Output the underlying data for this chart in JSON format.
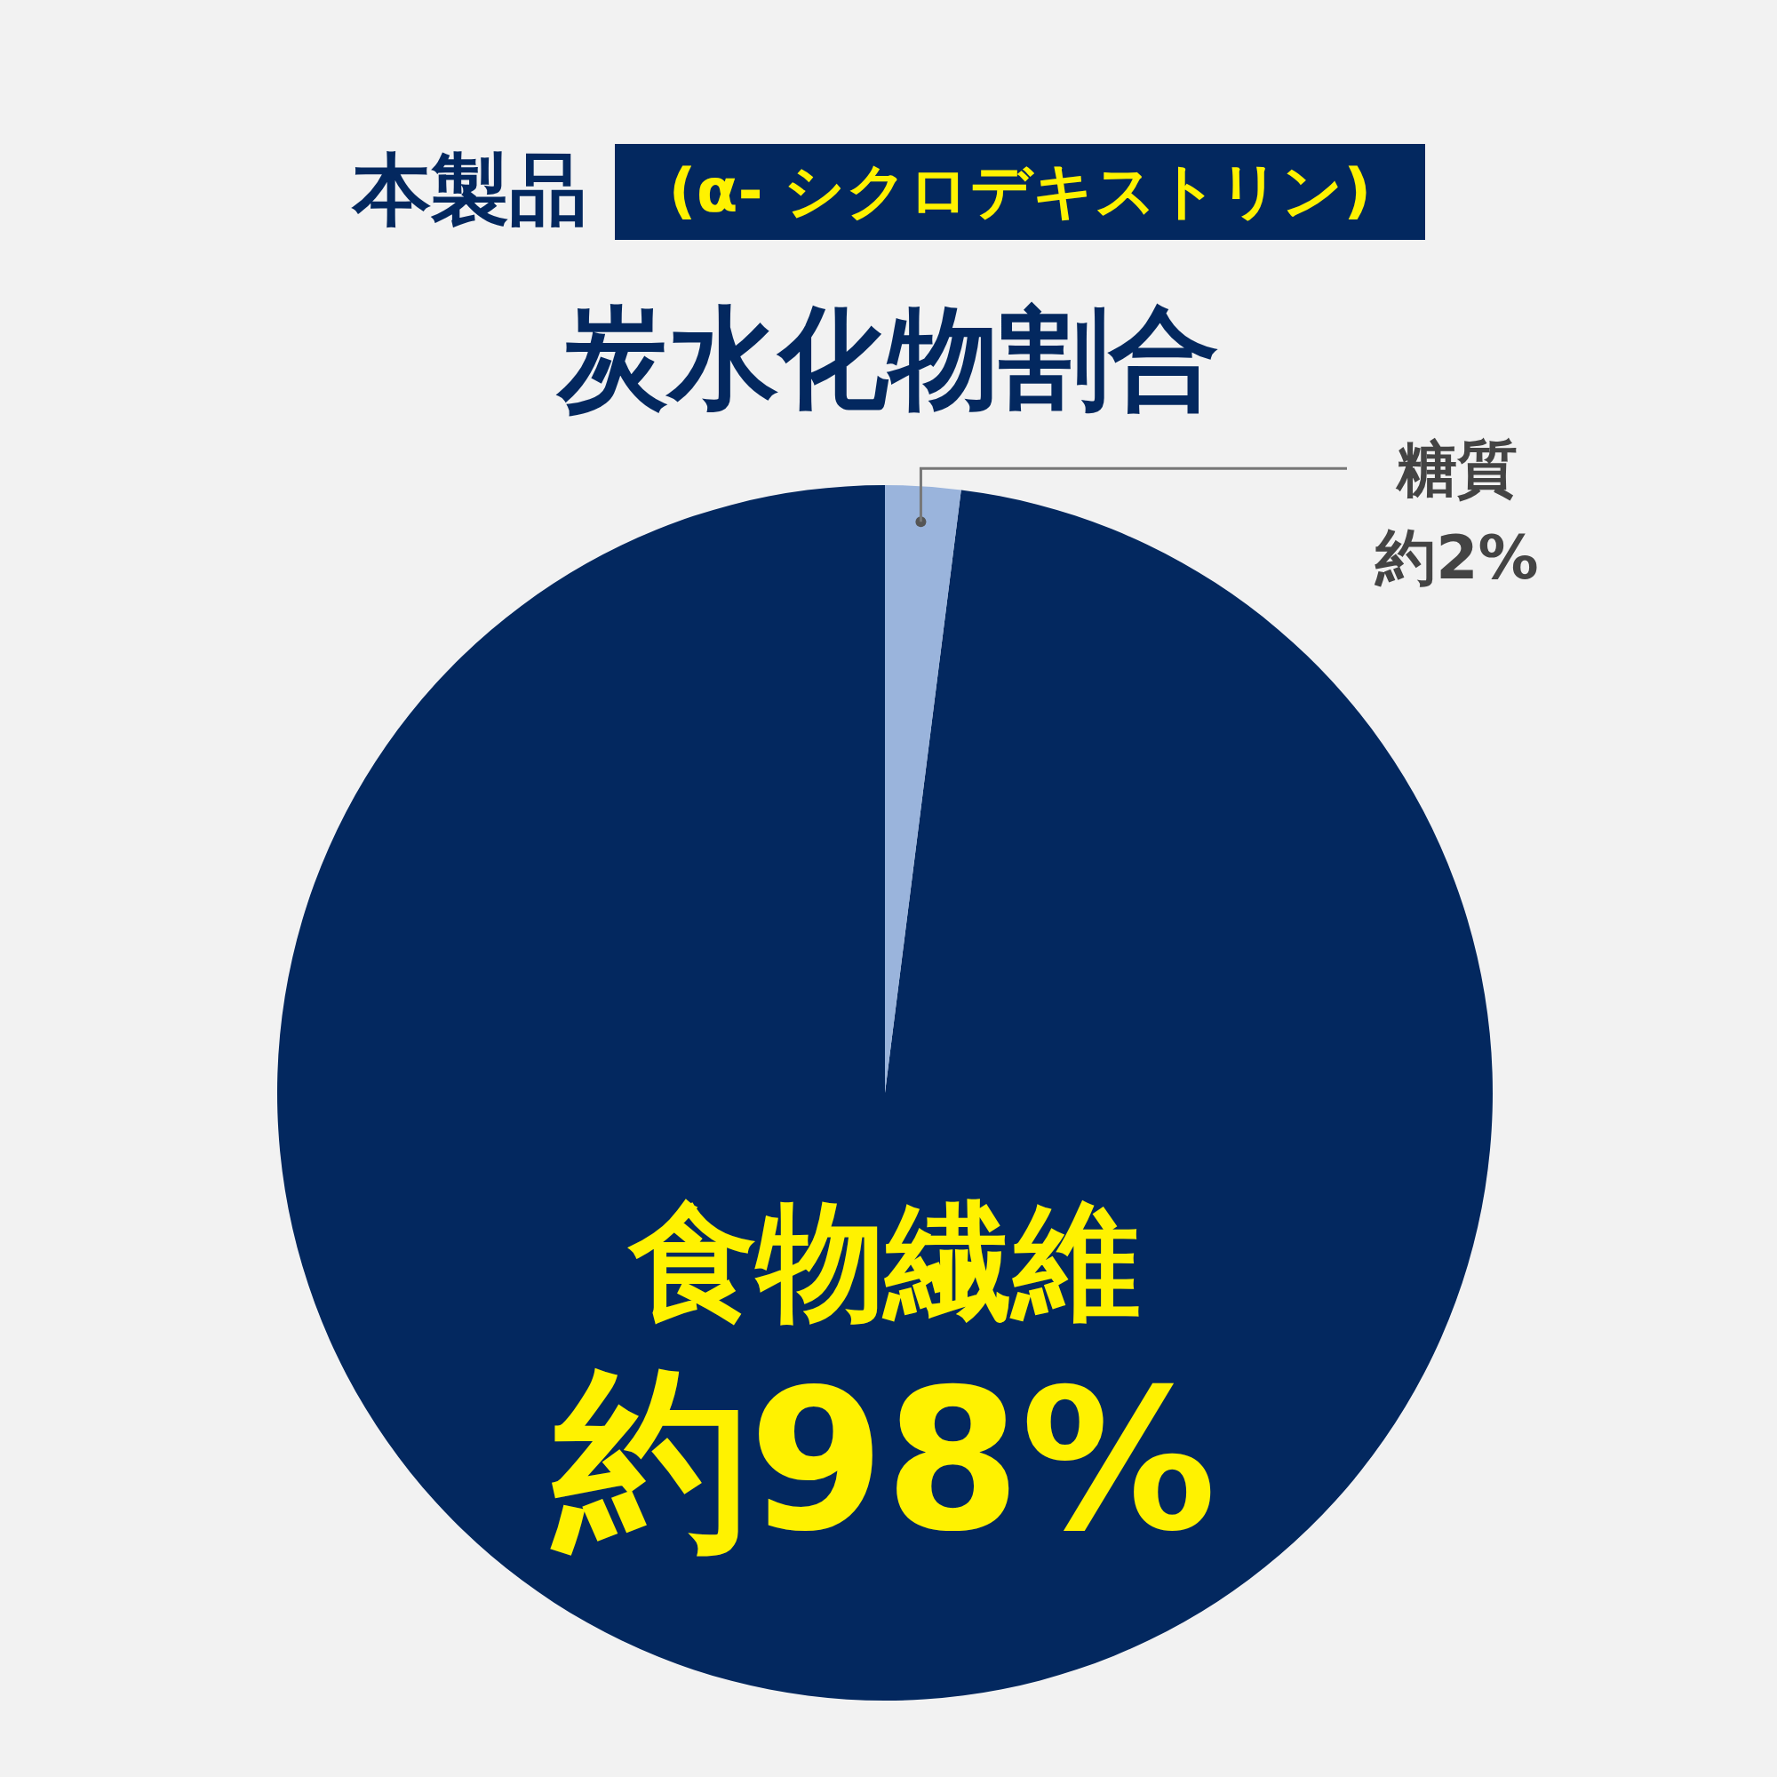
{
  "chart_data": {
    "type": "pie",
    "subtitle": "本製品",
    "annotations": [
      "(α- シクロデキストリン)"
    ],
    "title": "炭水化物割合",
    "categories": [
      "食物繊維",
      "糖質"
    ],
    "values": [
      98,
      2
    ],
    "value_labels": [
      "約98%",
      "約2%"
    ],
    "colors": [
      "#03285f",
      "#9ab4dc"
    ],
    "legend": false
  }
}
